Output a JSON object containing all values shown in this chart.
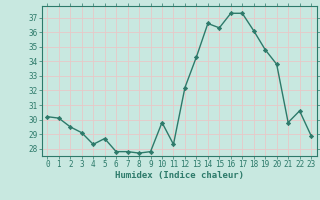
{
  "x": [
    0,
    1,
    2,
    3,
    4,
    5,
    6,
    7,
    8,
    9,
    10,
    11,
    12,
    13,
    14,
    15,
    16,
    17,
    18,
    19,
    20,
    21,
    22,
    23
  ],
  "y": [
    30.2,
    30.1,
    29.5,
    29.1,
    28.3,
    28.7,
    27.8,
    27.8,
    27.7,
    27.8,
    29.8,
    28.3,
    32.2,
    34.3,
    36.6,
    36.3,
    37.3,
    37.3,
    36.1,
    34.8,
    33.8,
    29.8,
    30.6,
    28.9
  ],
  "line_color": "#2d7a6a",
  "marker": "D",
  "marker_size": 2.2,
  "bg_color": "#c8e8e0",
  "grid_color": "#e8c8c8",
  "axis_color": "#2d7a6a",
  "tick_label_color": "#2d7a6a",
  "xlabel": "Humidex (Indice chaleur)",
  "xlabel_color": "#2d7a6a",
  "ylim": [
    27.5,
    37.8
  ],
  "xlim": [
    -0.5,
    23.5
  ],
  "yticks": [
    28,
    29,
    30,
    31,
    32,
    33,
    34,
    35,
    36,
    37
  ],
  "xticks": [
    0,
    1,
    2,
    3,
    4,
    5,
    6,
    7,
    8,
    9,
    10,
    11,
    12,
    13,
    14,
    15,
    16,
    17,
    18,
    19,
    20,
    21,
    22,
    23
  ],
  "tick_fontsize": 5.5,
  "xlabel_fontsize": 6.5,
  "linewidth": 1.0
}
